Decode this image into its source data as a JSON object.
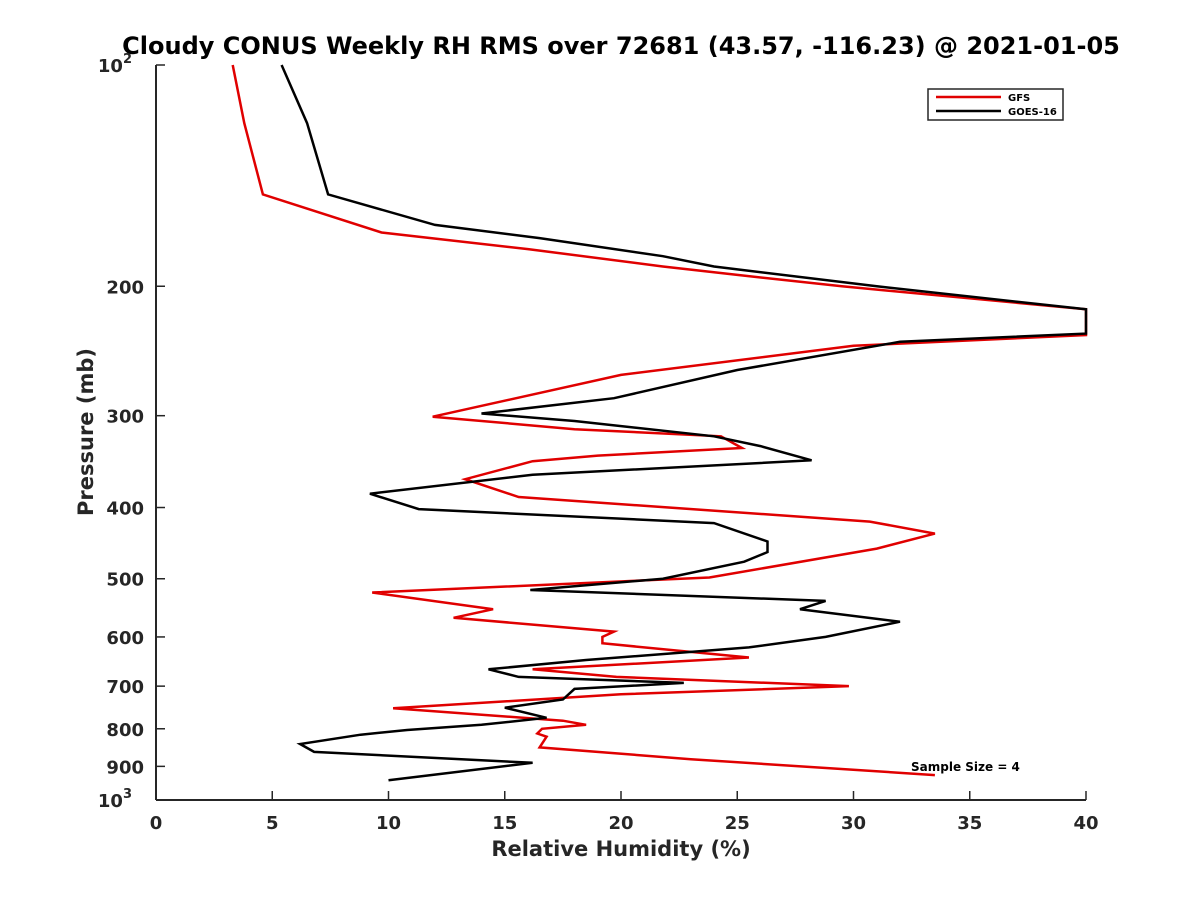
{
  "chart_data": {
    "type": "line",
    "title": "Cloudy CONUS Weekly RH RMS over 72681 (43.57, -116.23) @ 2021-01-05",
    "xlabel": "Relative Humidity (%)",
    "ylabel": "Pressure (mb)",
    "xlim": [
      0,
      40
    ],
    "ylim": [
      100,
      1000
    ],
    "y_scale": "log",
    "y_reversed": true,
    "x_ticks": [
      0,
      5,
      10,
      15,
      20,
      25,
      30,
      35,
      40
    ],
    "x_tick_labels": [
      "0",
      "5",
      "10",
      "15",
      "20",
      "25",
      "30",
      "35",
      "40"
    ],
    "y_ticks": [
      100,
      200,
      300,
      400,
      500,
      600,
      700,
      800,
      900,
      1000
    ],
    "y_tick_labels": [
      "10^2",
      "200",
      "300",
      "400",
      "500",
      "600",
      "700",
      "800",
      "900",
      "10^3"
    ],
    "grid": false,
    "legend_position": "top-right",
    "annotation": "Sample Size = 4",
    "series": [
      {
        "name": "GFS",
        "color": "#e00000",
        "points": [
          [
            3.3,
            100
          ],
          [
            3.8,
            120
          ],
          [
            4.6,
            150
          ],
          [
            9.7,
            169
          ],
          [
            16.0,
            178
          ],
          [
            21.8,
            188
          ],
          [
            25.0,
            193
          ],
          [
            29.5,
            200
          ],
          [
            40.0,
            215
          ],
          [
            40.0,
            233
          ],
          [
            30.0,
            241
          ],
          [
            20.0,
            264
          ],
          [
            11.9,
            301
          ],
          [
            18.0,
            313
          ],
          [
            24.3,
            320
          ],
          [
            25.2,
            332
          ],
          [
            19.0,
            340
          ],
          [
            16.2,
            346
          ],
          [
            13.3,
            366
          ],
          [
            15.6,
            387
          ],
          [
            30.7,
            418
          ],
          [
            33.5,
            434
          ],
          [
            31.0,
            455
          ],
          [
            23.8,
            498
          ],
          [
            9.3,
            522
          ],
          [
            14.5,
            550
          ],
          [
            12.8,
            565
          ],
          [
            19.7,
            590
          ],
          [
            19.2,
            600
          ],
          [
            19.2,
            612
          ],
          [
            25.5,
            640
          ],
          [
            16.2,
            664
          ],
          [
            19.8,
            680
          ],
          [
            29.8,
            700
          ],
          [
            20.0,
            718
          ],
          [
            10.2,
            750
          ],
          [
            17.5,
            780
          ],
          [
            18.5,
            790
          ],
          [
            16.6,
            800
          ],
          [
            16.4,
            812
          ],
          [
            16.8,
            820
          ],
          [
            16.5,
            848
          ],
          [
            23.0,
            880
          ],
          [
            33.5,
            925
          ]
        ]
      },
      {
        "name": "GOES-16",
        "color": "#000000",
        "points": [
          [
            5.4,
            100
          ],
          [
            6.5,
            120
          ],
          [
            7.4,
            150
          ],
          [
            12.0,
            165
          ],
          [
            16.5,
            172
          ],
          [
            21.8,
            182
          ],
          [
            24.0,
            188
          ],
          [
            31.0,
            200
          ],
          [
            40.0,
            215
          ],
          [
            40.0,
            232
          ],
          [
            32.0,
            238
          ],
          [
            25.0,
            260
          ],
          [
            19.7,
            284
          ],
          [
            14.0,
            298
          ],
          [
            18.0,
            305
          ],
          [
            24.0,
            320
          ],
          [
            26.0,
            330
          ],
          [
            28.2,
            345
          ],
          [
            16.2,
            361
          ],
          [
            9.2,
            383
          ],
          [
            11.3,
            402
          ],
          [
            24.0,
            420
          ],
          [
            26.3,
            445
          ],
          [
            26.3,
            460
          ],
          [
            25.3,
            474
          ],
          [
            21.8,
            500
          ],
          [
            16.1,
            518
          ],
          [
            28.8,
            536
          ],
          [
            27.7,
            550
          ],
          [
            32.0,
            572
          ],
          [
            28.8,
            600
          ],
          [
            25.5,
            620
          ],
          [
            18.5,
            645
          ],
          [
            14.3,
            664
          ],
          [
            15.6,
            680
          ],
          [
            22.7,
            693
          ],
          [
            18.0,
            706
          ],
          [
            17.5,
            730
          ],
          [
            15.0,
            749
          ],
          [
            16.8,
            773
          ],
          [
            14.0,
            790
          ],
          [
            10.8,
            803
          ],
          [
            8.8,
            815
          ],
          [
            6.2,
            839
          ],
          [
            6.8,
            860
          ],
          [
            16.2,
            890
          ],
          [
            10.0,
            940
          ]
        ]
      }
    ]
  }
}
